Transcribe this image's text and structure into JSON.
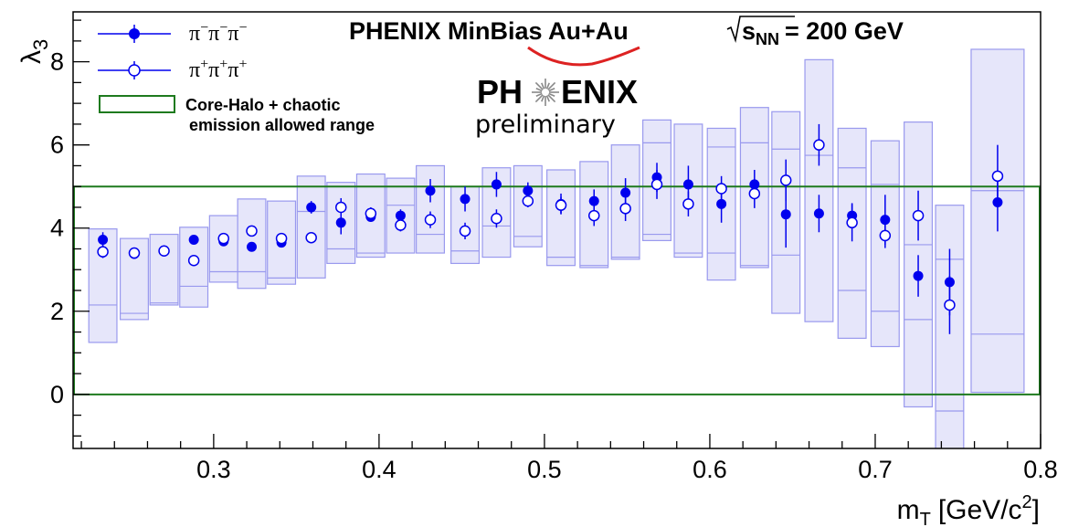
{
  "title": "PHENIX MinBias Au+Au",
  "title_energy_var": "s",
  "title_energy_sub": "NN",
  "title_energy_val": "= 200 GeV",
  "logo": {
    "left": "PH",
    "right": "ENIX",
    "sub": "preliminary",
    "logo_color": "#dd2222"
  },
  "xaxis": {
    "label": "m",
    "label_sub": "T",
    "label_unit": "[GeV/c",
    "label_sup": "2",
    "label_close": "]"
  },
  "yaxis": {
    "label": "λ",
    "label_sub": "3"
  },
  "legend": {
    "minus": {
      "base": "π",
      "sup": "−"
    },
    "plus": {
      "base": "π",
      "sup": "+"
    },
    "band": {
      "line1": "Core-Halo + chaotic",
      "line2": "emission allowed range"
    }
  },
  "colors": {
    "series": "#0000ee",
    "box_fill": "#e6e6fa",
    "box_stroke": "#9999ee",
    "band": "#1e7a1e"
  },
  "chart_data": {
    "type": "scatter",
    "xlim": [
      0.215,
      0.8
    ],
    "ylim": [
      -1.3,
      9.2
    ],
    "xticks": [
      "0.3",
      "0.4",
      "0.5",
      "0.6",
      "0.7",
      "0.8"
    ],
    "yticks": [
      "0",
      "2",
      "4",
      "6",
      "8"
    ],
    "band": [
      0,
      5
    ],
    "series": [
      {
        "name": "π⁻π⁻π⁻",
        "marker": "filled",
        "x": [
          0.233,
          0.252,
          0.27,
          0.288,
          0.306,
          0.323,
          0.341,
          0.359,
          0.377,
          0.395,
          0.413,
          0.431,
          0.452,
          0.471,
          0.49,
          0.51,
          0.53,
          0.549,
          0.568,
          0.587,
          0.607,
          0.627,
          0.646,
          0.666,
          0.686,
          0.706,
          0.726,
          0.745,
          0.774
        ],
        "y": [
          3.72,
          3.38,
          3.45,
          3.72,
          3.68,
          3.55,
          3.65,
          4.5,
          4.13,
          4.27,
          4.3,
          4.9,
          4.7,
          5.05,
          4.9,
          4.58,
          4.65,
          4.85,
          5.22,
          5.05,
          4.58,
          5.05,
          4.33,
          4.35,
          4.3,
          4.2,
          2.85,
          2.7,
          4.62
        ],
        "err": [
          0.18,
          0.12,
          0.08,
          0.08,
          0.05,
          0.08,
          0.08,
          0.15,
          0.28,
          0.12,
          0.15,
          0.28,
          0.3,
          0.3,
          0.2,
          0.25,
          0.28,
          0.35,
          0.35,
          0.45,
          0.45,
          0.35,
          0.8,
          0.45,
          0.3,
          0.6,
          0.5,
          0.8,
          0.7
        ],
        "sys_lo": [
          1.25,
          1.8,
          2.15,
          2.1,
          2.7,
          2.55,
          2.65,
          2.8,
          3.15,
          3.3,
          3.4,
          3.4,
          3.15,
          3.3,
          3.55,
          3.1,
          3.05,
          3.25,
          3.7,
          3.3,
          2.75,
          3.05,
          1.95,
          1.75,
          1.35,
          1.15,
          -0.3,
          -1.35,
          0.05
        ],
        "sys_hi": [
          3.98,
          3.75,
          3.85,
          4.02,
          4.3,
          4.7,
          4.65,
          5.25,
          5.1,
          5.3,
          5.2,
          5.5,
          5.0,
          5.45,
          5.5,
          5.4,
          5.6,
          6.0,
          6.6,
          6.5,
          6.4,
          6.9,
          6.8,
          8.05,
          6.4,
          6.1,
          6.55,
          4.55,
          8.3
        ],
        "sys_mid": [
          2.15,
          1.95,
          2.2,
          2.6,
          2.95,
          2.95,
          2.8,
          4.4,
          3.5,
          3.4,
          4.55,
          3.85,
          3.45,
          4.05,
          3.8,
          3.3,
          3.1,
          3.3,
          3.85,
          3.4,
          3.4,
          3.1,
          3.35,
          5.75,
          2.5,
          2.0,
          1.8,
          -0.4,
          1.45
        ],
        "sys_mid2": [
          null,
          null,
          null,
          null,
          null,
          null,
          null,
          null,
          null,
          null,
          null,
          null,
          null,
          null,
          null,
          null,
          null,
          null,
          6.05,
          null,
          5.95,
          6.05,
          5.9,
          null,
          5.45,
          5.05,
          3.6,
          3.25,
          4.9
        ]
      },
      {
        "name": "π⁺π⁺π⁺",
        "marker": "open",
        "x": [
          0.233,
          0.252,
          0.27,
          0.288,
          0.306,
          0.323,
          0.341,
          0.359,
          0.377,
          0.395,
          0.413,
          0.431,
          0.452,
          0.471,
          0.49,
          0.51,
          0.53,
          0.549,
          0.568,
          0.587,
          0.607,
          0.627,
          0.646,
          0.666,
          0.686,
          0.706,
          0.726,
          0.745,
          0.774
        ],
        "y": [
          3.43,
          3.4,
          3.45,
          3.22,
          3.75,
          3.93,
          3.75,
          3.77,
          4.5,
          4.35,
          4.07,
          4.2,
          3.93,
          4.23,
          4.65,
          4.55,
          4.3,
          4.47,
          5.05,
          4.58,
          4.95,
          4.83,
          5.15,
          6.0,
          4.13,
          3.82,
          4.3,
          2.15,
          5.25
        ],
        "err": [
          0.15,
          0.1,
          0.08,
          0.1,
          0.05,
          0.08,
          0.08,
          0.1,
          0.22,
          0.15,
          0.15,
          0.2,
          0.2,
          0.22,
          0.15,
          0.2,
          0.25,
          0.3,
          0.35,
          0.3,
          0.3,
          0.35,
          0.5,
          0.5,
          0.45,
          0.3,
          0.6,
          0.7,
          0.75
        ]
      }
    ]
  }
}
